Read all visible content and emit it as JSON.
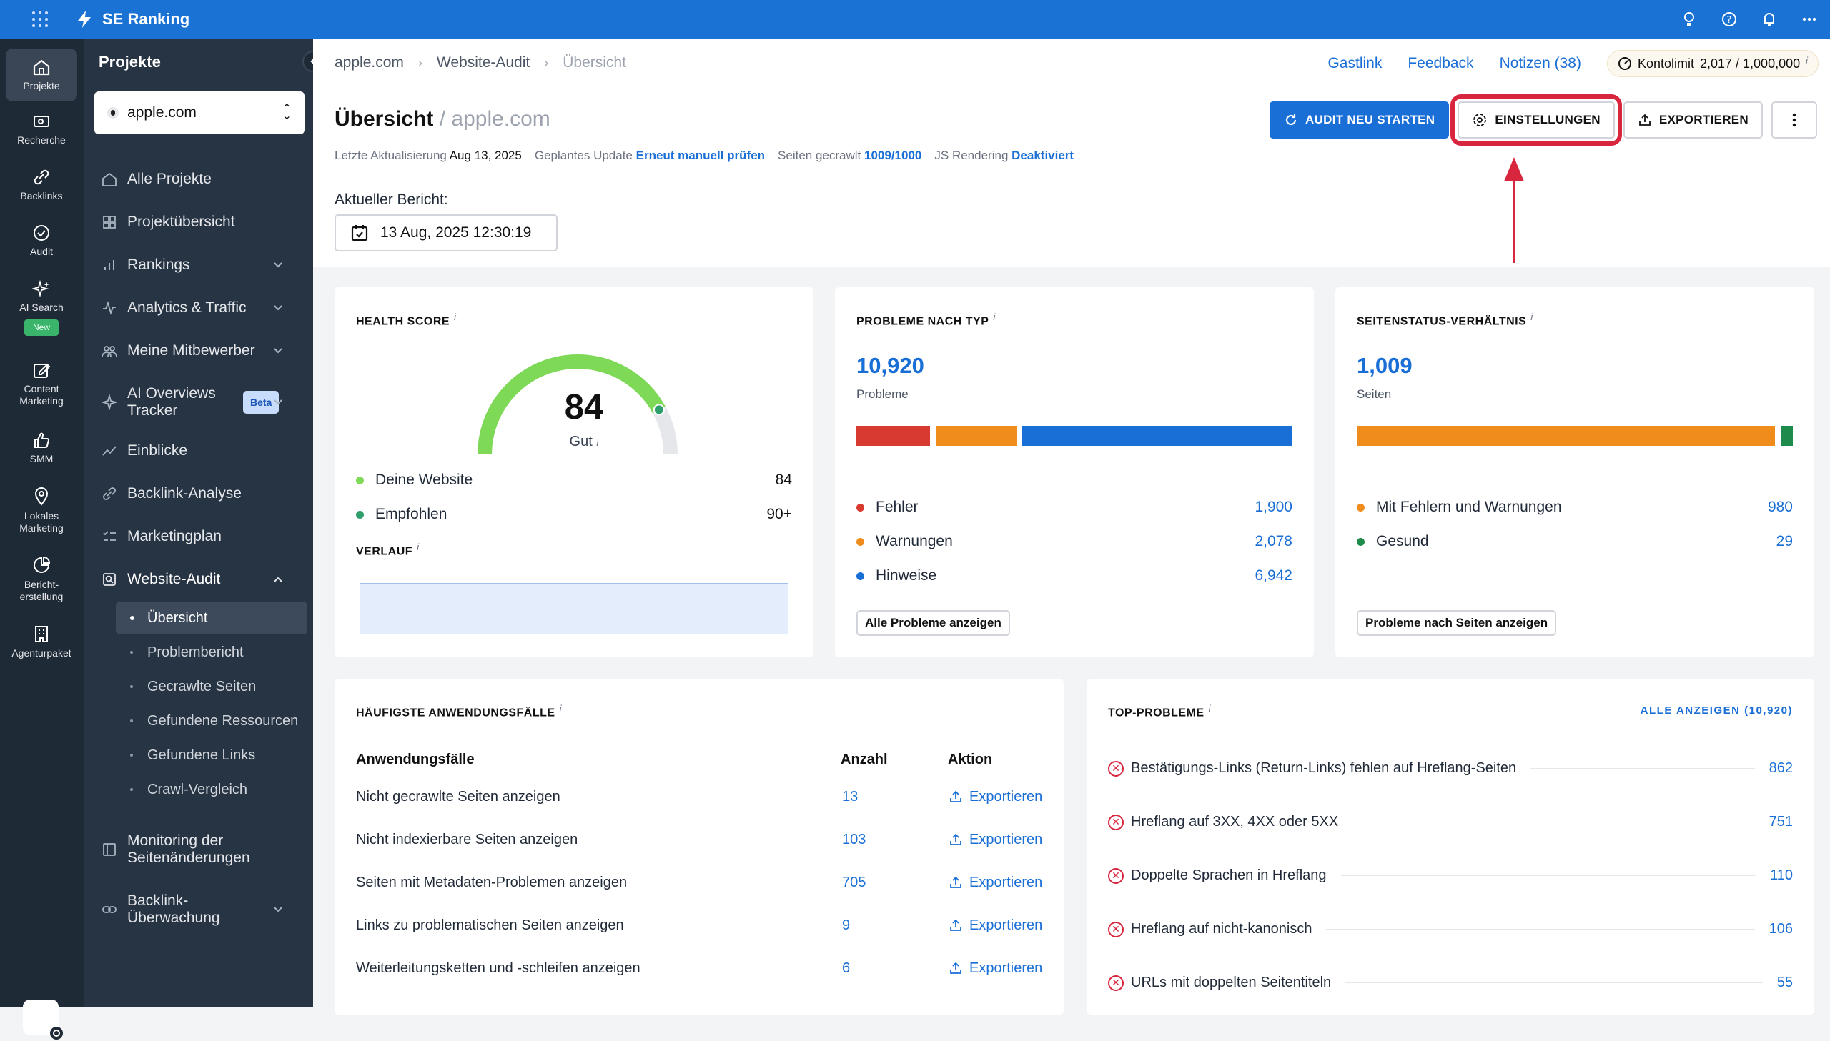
{
  "app": {
    "brand": "SE Ranking"
  },
  "rail": [
    {
      "label": "Projekte",
      "icon": "home-icon"
    },
    {
      "label": "Recherche",
      "icon": "research-icon"
    },
    {
      "label": "Backlinks",
      "icon": "link-icon"
    },
    {
      "label": "Audit",
      "icon": "check-circle-icon"
    },
    {
      "label": "AI Search",
      "icon": "sparkle-icon",
      "tag": "New"
    },
    {
      "label": "Content Marketing",
      "icon": "edit-icon"
    },
    {
      "label": "SMM",
      "icon": "thumbs-up-icon"
    },
    {
      "label": "Lokales Marketing",
      "icon": "pin-icon"
    },
    {
      "label": "Bericht-erstellung",
      "icon": "report-icon"
    },
    {
      "label": "Agenturpaket",
      "icon": "building-icon"
    }
  ],
  "sidebar": {
    "title": "Projekte",
    "project": "apple.com",
    "items": [
      {
        "label": "Alle Projekte"
      },
      {
        "label": "Projektübersicht"
      },
      {
        "label": "Rankings"
      },
      {
        "label": "Analytics & Traffic"
      },
      {
        "label": "Meine Mitbewerber"
      },
      {
        "label": "AI Overviews Tracker",
        "badge": "Beta"
      },
      {
        "label": "Einblicke"
      },
      {
        "label": "Backlink-Analyse"
      },
      {
        "label": "Marketingplan"
      },
      {
        "label": "Website-Audit"
      },
      {
        "label": "Monitoring der Seitenänderungen"
      },
      {
        "label": "Backlink-Überwachung"
      }
    ],
    "audit_sub": [
      "Übersicht",
      "Problembericht",
      "Gecrawlte Seiten",
      "Gefundene Ressourcen",
      "Gefundene Links",
      "Crawl-Vergleich"
    ]
  },
  "header": {
    "crumbs": [
      "apple.com",
      "Website-Audit",
      "Übersicht"
    ],
    "links": {
      "gastlink": "Gastlink",
      "feedback": "Feedback",
      "notizen": "Notizen (38)"
    },
    "kontolimit_label": "Kontolimit",
    "kontolimit_value": "2,017 / 1,000,000",
    "title": "Übersicht",
    "title_domain": "/ apple.com",
    "meta": {
      "last_label": "Letzte Aktualisierung",
      "last_value": "Aug 13, 2025",
      "planned_label": "Geplantes Update",
      "planned_value": "Erneut manuell prüfen",
      "crawled_label": "Seiten gecrawlt",
      "crawled_value": "1009/1000",
      "js_label": "JS Rendering",
      "js_value": "Deaktiviert"
    },
    "buttons": {
      "restart": "AUDIT NEU STARTEN",
      "settings": "EINSTELLUNGEN",
      "export": "EXPORTIEREN"
    },
    "report_label": "Aktueller Bericht:",
    "report_date": "13 Aug, 2025 12:30:19"
  },
  "health": {
    "title": "HEALTH SCORE",
    "score": "84",
    "score_value": 84,
    "grade": "Gut",
    "rows": [
      {
        "label": "Deine Website",
        "value": "84",
        "color": "#4caf50"
      },
      {
        "label": "Empfohlen",
        "value": "90+",
        "color": "#2e9e6a"
      }
    ],
    "verlauf": "VERLAUF"
  },
  "probleme": {
    "title": "PROBLEME NACH TYP",
    "total": "10,920",
    "sub": "Probleme",
    "rows": [
      {
        "label": "Fehler",
        "value": "1,900",
        "color": "#d93a2f",
        "num": 1900
      },
      {
        "label": "Warnungen",
        "value": "2,078",
        "color": "#f08c1c",
        "num": 2078
      },
      {
        "label": "Hinweise",
        "value": "6,942",
        "color": "#1a6fd6",
        "num": 6942
      }
    ],
    "button": "Alle Probleme anzeigen"
  },
  "status": {
    "title": "SEITENSTATUS-VERHÄLTNIS",
    "total": "1,009",
    "sub": "Seiten",
    "rows": [
      {
        "label": "Mit Fehlern und Warnungen",
        "value": "980",
        "color": "#f08c1c",
        "num": 980
      },
      {
        "label": "Gesund",
        "value": "29",
        "color": "#1e8a4c",
        "num": 29
      }
    ],
    "button": "Probleme nach Seiten anzeigen"
  },
  "usecases": {
    "title": "HÄUFIGSTE ANWENDUNGSFÄLLE",
    "columns": [
      "Anwendungsfälle",
      "Anzahl",
      "Aktion"
    ],
    "rows": [
      {
        "label": "Nicht gecrawlte Seiten anzeigen",
        "count": "13",
        "action": "Exportieren"
      },
      {
        "label": "Nicht indexierbare Seiten anzeigen",
        "count": "103",
        "action": "Exportieren"
      },
      {
        "label": "Seiten mit Metadaten-Problemen anzeigen",
        "count": "705",
        "action": "Exportieren"
      },
      {
        "label": "Links zu problematischen Seiten anzeigen",
        "count": "9",
        "action": "Exportieren"
      },
      {
        "label": "Weiterleitungsketten und -schleifen anzeigen",
        "count": "6",
        "action": "Exportieren"
      }
    ]
  },
  "top": {
    "title": "TOP-PROBLEME",
    "all_link": "ALLE ANZEIGEN (10,920)",
    "rows": [
      {
        "label": "Bestätigungs-Links (Return-Links) fehlen auf Hreflang-Seiten",
        "value": "862"
      },
      {
        "label": "Hreflang auf 3XX, 4XX oder 5XX",
        "value": "751"
      },
      {
        "label": "Doppelte Sprachen in Hreflang",
        "value": "110"
      },
      {
        "label": "Hreflang auf nicht-kanonisch",
        "value": "106"
      },
      {
        "label": "URLs mit doppelten Seitentiteln",
        "value": "55"
      }
    ]
  },
  "colors": {
    "accent": "#1a6fd6",
    "highlight": "#d7263d",
    "gauge": "#7ed957"
  }
}
